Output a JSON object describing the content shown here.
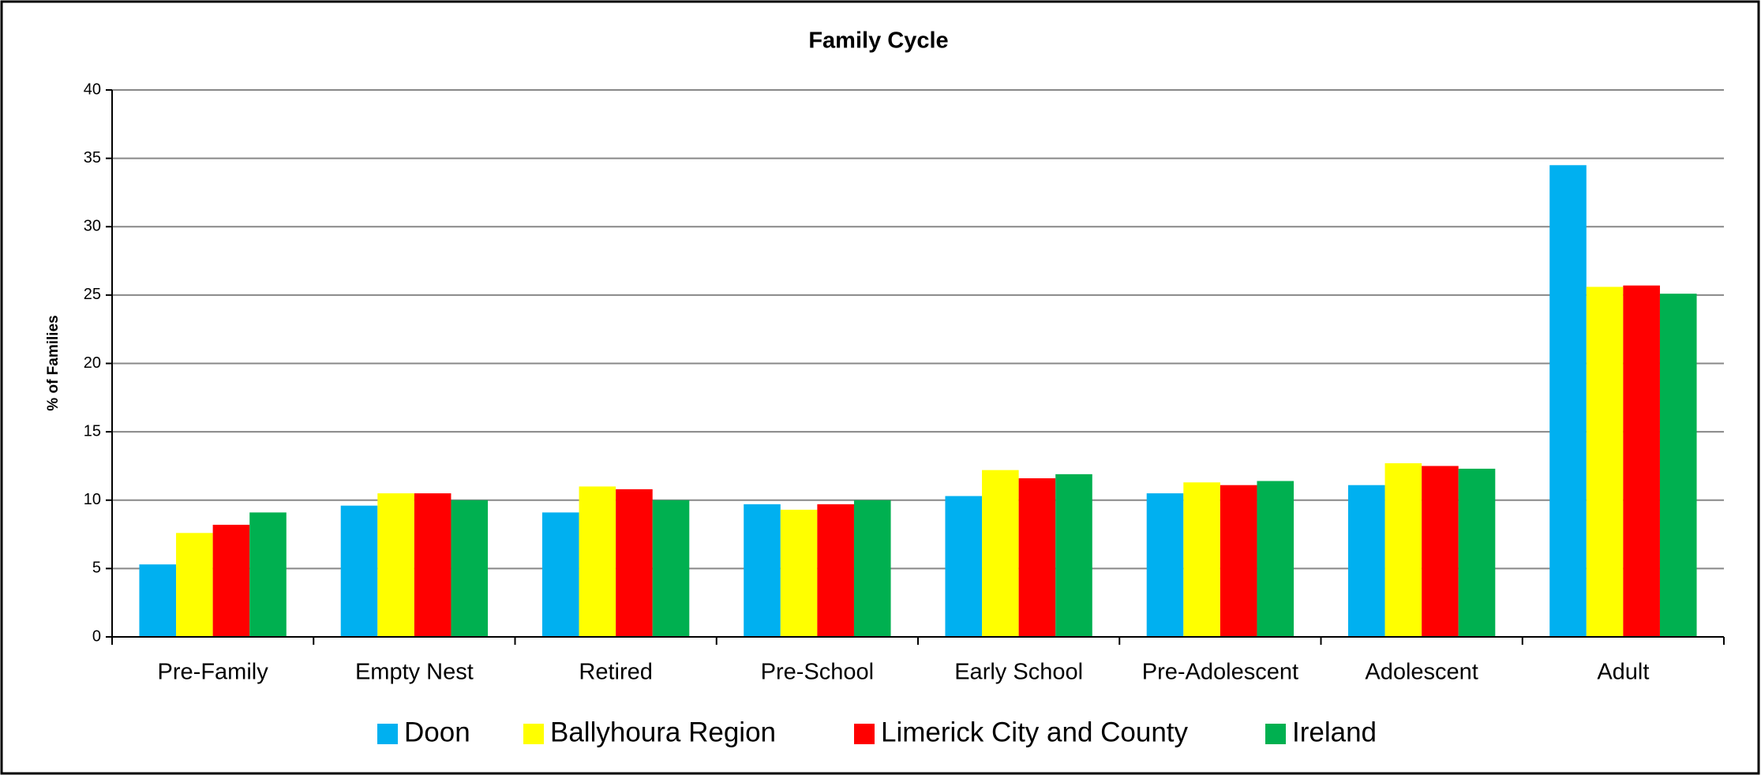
{
  "chart_data": {
    "type": "bar",
    "title": "Family Cycle",
    "y_label": "% of Families",
    "categories": [
      "Pre-Family",
      "Empty Nest",
      "Retired",
      "Pre-School",
      "Early School",
      "Pre-Adolescent",
      "Adolescent",
      "Adult"
    ],
    "series": [
      {
        "name": "Doon",
        "color": "#00b0f0",
        "values": [
          5.3,
          9.6,
          9.1,
          9.7,
          10.3,
          10.5,
          11.1,
          34.5
        ]
      },
      {
        "name": "Ballyhoura Region",
        "color": "#ffff00",
        "values": [
          7.6,
          10.5,
          11.0,
          9.3,
          12.2,
          11.3,
          12.7,
          25.6
        ]
      },
      {
        "name": "Limerick City and County",
        "color": "#ff0000",
        "values": [
          8.2,
          10.5,
          10.8,
          9.7,
          11.6,
          11.1,
          12.5,
          25.7
        ]
      },
      {
        "name": "Ireland",
        "color": "#00b050",
        "values": [
          9.1,
          10.0,
          10.0,
          10.0,
          11.9,
          11.4,
          12.3,
          25.1
        ]
      }
    ],
    "ylim": [
      0,
      40
    ],
    "yticks": [
      0,
      5,
      10,
      15,
      20,
      25,
      30,
      35,
      40
    ],
    "grid": true,
    "legend": "bottom"
  }
}
